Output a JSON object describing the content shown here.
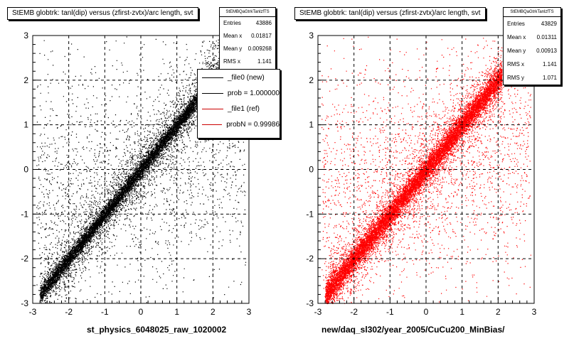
{
  "chart_data": [
    {
      "type": "scatter",
      "title": "StEMB globtrk: tanl(dip) versus (zfirst-zvtx)/arc length, svt",
      "xlabel": "st_physics_6048025_raw_1020002",
      "ylabel": "",
      "xlim": [
        -3,
        3
      ],
      "ylim": [
        -3,
        3
      ],
      "xticks": [
        "-3",
        "-2",
        "-1",
        "0",
        "1",
        "2",
        "3"
      ],
      "yticks": [
        "-3",
        "-2",
        "-1",
        "0",
        "1",
        "2",
        "3"
      ],
      "grid": true,
      "marker_color": "#000000",
      "trend": {
        "slope": 1.0,
        "intercept": 0.0,
        "core_x_range": [
          -2.8,
          2.7
        ]
      },
      "stats": {
        "name": "StEMBQaGtrkTanlzfTS",
        "entries": "43886",
        "mean_x": "0.01817",
        "mean_y": "0.009268",
        "rms_x": "1.141"
      },
      "legend": {
        "placement": "top-right",
        "entries": [
          {
            "label": "_file0 (new)",
            "color": "#000000"
          },
          {
            "label": "prob = 1.000000",
            "color": "#000000"
          },
          {
            "label": "_file1 (ref)",
            "color": "#cc0000"
          },
          {
            "label": "probN = 0.99986",
            "color": "#cc0000"
          }
        ]
      }
    },
    {
      "type": "scatter",
      "title": "StEMB globtrk: tanl(dip) versus (zfirst-zvtx)/arc length, svt",
      "xlabel": "new/daq_sl302/year_2005/CuCu200_MinBias/",
      "ylabel": "",
      "xlim": [
        -3,
        3
      ],
      "ylim": [
        -3,
        3
      ],
      "xticks": [
        "-3",
        "-2",
        "-1",
        "0",
        "1",
        "2",
        "3"
      ],
      "yticks": [
        "-3",
        "-2",
        "-1",
        "0",
        "1",
        "2",
        "3"
      ],
      "grid": true,
      "marker_color": "#ff0000",
      "trend": {
        "slope": 1.0,
        "intercept": 0.0,
        "core_x_range": [
          -2.8,
          2.1
        ]
      },
      "stats": {
        "name": "StEMBQaGtrkTanlzfTS",
        "entries": "43829",
        "mean_x": "0.01311",
        "mean_y": "0.00913",
        "rms_x": "1.141",
        "rms_y": "1.071"
      }
    }
  ],
  "labels": {
    "entries": "Entries",
    "mean_x": "Mean x",
    "mean_y": "Mean y",
    "rms_x": "RMS x",
    "rms_y": "RMS y"
  }
}
